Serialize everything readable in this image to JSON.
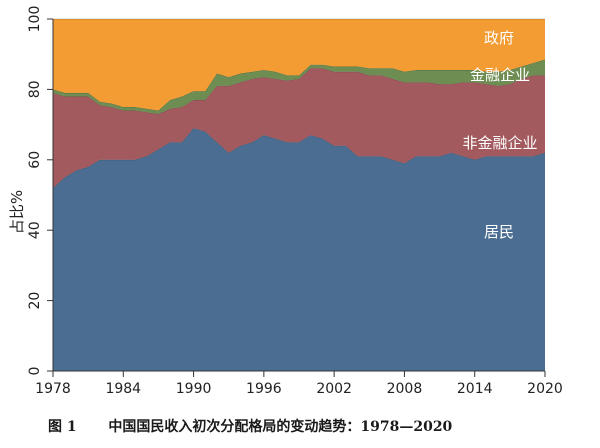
{
  "chart_data": {
    "type": "area",
    "stacked": true,
    "x": [
      1978,
      1979,
      1980,
      1981,
      1982,
      1983,
      1984,
      1985,
      1986,
      1987,
      1988,
      1989,
      1990,
      1991,
      1992,
      1993,
      1994,
      1995,
      1996,
      1997,
      1998,
      1999,
      2000,
      2001,
      2002,
      2003,
      2004,
      2005,
      2006,
      2007,
      2008,
      2009,
      2010,
      2011,
      2012,
      2013,
      2014,
      2015,
      2016,
      2017,
      2018,
      2019,
      2020
    ],
    "series": [
      {
        "name": "居民",
        "color": "#4a6d91",
        "values": [
          52,
          55,
          57,
          58,
          60,
          60,
          60,
          60,
          61,
          63,
          65,
          65,
          69,
          68,
          65,
          62,
          64,
          65,
          67,
          66,
          65,
          65,
          67,
          66,
          64,
          64,
          61,
          61,
          61,
          60,
          59,
          61,
          61,
          61,
          62,
          61,
          60,
          61,
          61,
          61,
          61,
          61,
          62
        ]
      },
      {
        "name": "非金融企业",
        "color": "#a25a5e",
        "values": [
          27,
          23,
          21,
          20,
          15.5,
          15,
          14,
          14,
          12.5,
          10,
          9.5,
          10,
          8,
          9,
          16,
          19,
          18,
          18,
          16.5,
          17,
          17.5,
          18,
          19,
          20,
          21,
          21,
          24,
          23,
          23,
          23,
          23,
          21,
          21,
          20.5,
          19.5,
          21,
          22,
          20.5,
          20,
          20.5,
          22,
          23,
          22
        ]
      },
      {
        "name": "金融企业",
        "color": "#6e8d52",
        "values": [
          1,
          1,
          1,
          1,
          1,
          1,
          1,
          1,
          1,
          1,
          2.5,
          3,
          2.5,
          2.5,
          3.5,
          2.5,
          2.5,
          2,
          2,
          2,
          1.5,
          1,
          1,
          1,
          1.5,
          1.5,
          1.5,
          2,
          2,
          3,
          3,
          3.5,
          3.5,
          4,
          4,
          3.5,
          3.5,
          3.5,
          4,
          4,
          3.5,
          3.5,
          4.5
        ]
      },
      {
        "name": "政府",
        "color": "#f39c33",
        "values": [
          20,
          21,
          21,
          21,
          23.5,
          24,
          25,
          25,
          25.5,
          26,
          23,
          22,
          20.5,
          20.5,
          15.5,
          16.5,
          15.5,
          15,
          14.5,
          15,
          16,
          16,
          13,
          13,
          13.5,
          13.5,
          13.5,
          14,
          14,
          14,
          15,
          14.5,
          14.5,
          14.5,
          14.5,
          14.5,
          14.5,
          15.5,
          15,
          14.5,
          13.5,
          12.5,
          11.5
        ]
      }
    ],
    "series_labels": [
      "政府",
      "金融企业",
      "非金融企业",
      "居民"
    ],
    "ylabel": "占比%",
    "xlabel": "",
    "ylim": [
      0,
      100
    ],
    "xlim": [
      1978,
      2020
    ],
    "yticks": [
      0,
      20,
      40,
      60,
      80,
      100
    ],
    "xticks": [
      1978,
      1984,
      1990,
      1996,
      2002,
      2008,
      2014,
      2020
    ],
    "grid": false,
    "legend": "inline labels"
  },
  "caption": {
    "figure_no": "图 1",
    "title": "中国国民收入初次分配格局的变动趋势：1978—2020"
  }
}
